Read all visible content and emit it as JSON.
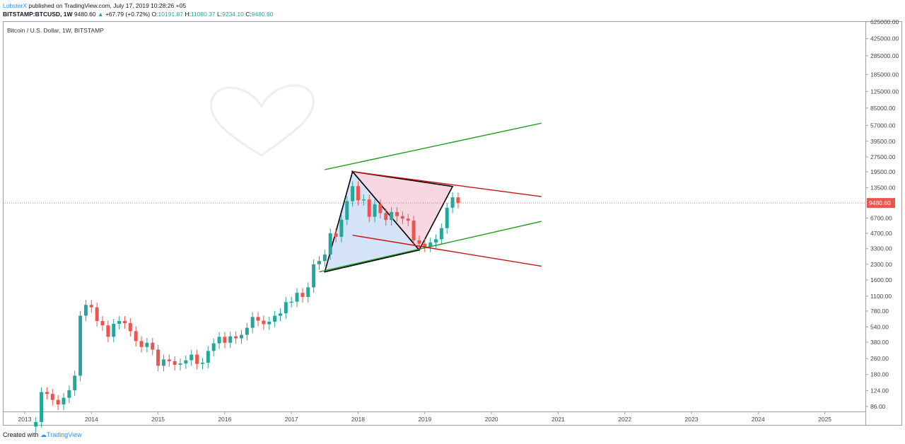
{
  "header": {
    "author": "LobsterX",
    "published_text": " published on TradingView.com, July 17, 2019 10:28:26 +05",
    "symbol": "BITSTAMP:BTCUSD, 1W",
    "last": "9480.60",
    "change": "+67.79 (+0.72%)",
    "o_label": "O:",
    "o_value": "10191.87",
    "h_label": "H:",
    "h_value": "11080.37",
    "l_label": "L:",
    "l_value": "9234.10",
    "c_label": "C:",
    "c_value": "9480.60"
  },
  "footer": {
    "created_with": "Created with",
    "brand": "TradingView"
  },
  "colors": {
    "up": "#26a69a",
    "down": "#ef5350",
    "channel_green": "#1e9e1e",
    "channel_red": "#cc1111",
    "triangle_blue": "#c5d9f5",
    "triangle_pink": "#f3c6d6",
    "price_line": "#ef5350"
  },
  "chart_data": {
    "type": "candlestick",
    "title": "Bitcoin / U.S. Dollar, 1W, BITSTAMP",
    "scale": "log",
    "y_ticks": [
      "625000.00",
      "425000.00",
      "285000.00",
      "185000.00",
      "125000.00",
      "85000.00",
      "57000.00",
      "39500.00",
      "27500.00",
      "19500.00",
      "13500.00",
      "9480.60",
      "6700.00",
      "4700.00",
      "3300.00",
      "2300.00",
      "1600.00",
      "1100.00",
      "780.00",
      "540.00",
      "380.00",
      "260.00",
      "180.00",
      "124.00",
      "86.00"
    ],
    "x_ticks": [
      "2013",
      "2014",
      "2015",
      "2016",
      "2017",
      "2018",
      "2019",
      "2020",
      "2021",
      "2022",
      "2023",
      "2024",
      "2025"
    ],
    "last_price": 9480.6,
    "series": [
      {
        "values": [
          [
            "2013-03",
            60
          ],
          [
            "2013-04",
            120
          ],
          [
            "2013-05",
            115
          ],
          [
            "2013-06",
            100
          ],
          [
            "2013-07",
            90
          ],
          [
            "2013-08",
            105
          ],
          [
            "2013-09",
            125
          ],
          [
            "2013-10",
            175
          ],
          [
            "2013-11",
            700
          ],
          [
            "2013-12",
            900
          ],
          [
            "2014-01",
            850
          ],
          [
            "2014-02",
            620
          ],
          [
            "2014-03",
            560
          ],
          [
            "2014-04",
            430
          ],
          [
            "2014-05",
            580
          ],
          [
            "2014-06",
            620
          ],
          [
            "2014-07",
            590
          ],
          [
            "2014-08",
            490
          ],
          [
            "2014-09",
            390
          ],
          [
            "2014-10",
            340
          ],
          [
            "2014-11",
            375
          ],
          [
            "2014-12",
            320
          ],
          [
            "2015-01",
            220
          ],
          [
            "2015-02",
            255
          ],
          [
            "2015-03",
            245
          ],
          [
            "2015-04",
            225
          ],
          [
            "2015-05",
            232
          ],
          [
            "2015-06",
            250
          ],
          [
            "2015-07",
            285
          ],
          [
            "2015-08",
            230
          ],
          [
            "2015-09",
            236
          ],
          [
            "2015-10",
            310
          ],
          [
            "2015-11",
            370
          ],
          [
            "2015-12",
            430
          ],
          [
            "2016-01",
            375
          ],
          [
            "2016-02",
            435
          ],
          [
            "2016-03",
            415
          ],
          [
            "2016-04",
            450
          ],
          [
            "2016-05",
            530
          ],
          [
            "2016-06",
            680
          ],
          [
            "2016-07",
            625
          ],
          [
            "2016-08",
            575
          ],
          [
            "2016-09",
            610
          ],
          [
            "2016-10",
            700
          ],
          [
            "2016-11",
            740
          ],
          [
            "2016-12",
            960
          ],
          [
            "2017-01",
            970
          ],
          [
            "2017-02",
            1190
          ],
          [
            "2017-03",
            1080
          ],
          [
            "2017-04",
            1350
          ],
          [
            "2017-05",
            2300
          ],
          [
            "2017-06",
            2480
          ],
          [
            "2017-07",
            2880
          ],
          [
            "2017-08",
            4700
          ],
          [
            "2017-09",
            4340
          ],
          [
            "2017-10",
            6450
          ],
          [
            "2017-11",
            9900
          ],
          [
            "2017-12",
            14000
          ],
          [
            "2018-01",
            10100
          ],
          [
            "2018-02",
            10300
          ],
          [
            "2018-03",
            6900
          ],
          [
            "2018-04",
            9200
          ],
          [
            "2018-05",
            7500
          ],
          [
            "2018-06",
            6400
          ],
          [
            "2018-07",
            7700
          ],
          [
            "2018-08",
            7000
          ],
          [
            "2018-09",
            6600
          ],
          [
            "2018-10",
            6300
          ],
          [
            "2018-11",
            4000
          ],
          [
            "2018-12",
            3700
          ],
          [
            "2019-01",
            3450
          ],
          [
            "2019-02",
            3800
          ],
          [
            "2019-03",
            4100
          ],
          [
            "2019-04",
            5300
          ],
          [
            "2019-05",
            8500
          ],
          [
            "2019-06",
            10800
          ],
          [
            "2019-07",
            9480.6
          ]
        ]
      }
    ],
    "annotations": {
      "channel_green_upper": [
        [
          "2017-07",
          20500
        ],
        [
          "2020-10",
          60000
        ]
      ],
      "channel_green_lower": [
        [
          "2017-06",
          1930
        ],
        [
          "2020-10",
          6200
        ]
      ],
      "channel_red_upper": [
        [
          "2017-12",
          19600
        ],
        [
          "2020-10",
          11000
        ]
      ],
      "channel_red_lower": [
        [
          "2017-12",
          4500
        ],
        [
          "2020-10",
          2200
        ]
      ],
      "triangle_points": [
        [
          "2017-07",
          1930
        ],
        [
          "2017-12",
          19600
        ],
        [
          "2018-12",
          3200
        ],
        [
          "2019-06",
          13900
        ]
      ]
    }
  }
}
